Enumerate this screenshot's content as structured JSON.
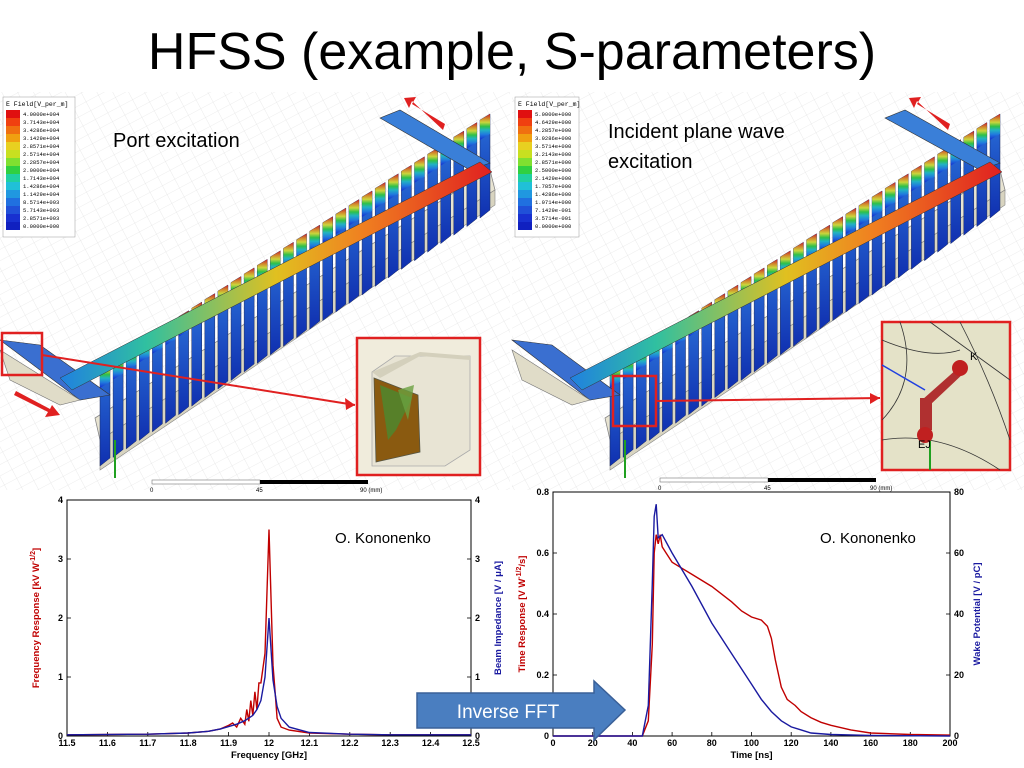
{
  "slide": {
    "title": "HFSS (example, S-parameters)",
    "caption_left": "Port excitation",
    "caption_right_line1": "Incident plane wave",
    "caption_right_line2": "excitation",
    "arrow_label": "Inverse FFT",
    "author_left": "O. Kononenko",
    "author_right": "O. Kononenko",
    "legend_left_title": "E Field[V_per_m]",
    "legend_right_title": "E Field[V_per_m]",
    "legend_left_values": [
      "4.0000e+004",
      "3.7143e+004",
      "3.4286e+004",
      "3.1429e+004",
      "2.8571e+004",
      "2.5714e+004",
      "2.2857e+004",
      "2.0000e+004",
      "1.7143e+004",
      "1.4286e+004",
      "1.1429e+004",
      "8.5714e+003",
      "5.7143e+003",
      "2.8571e+003",
      "0.0000e+000"
    ],
    "legend_right_values": [
      "5.0000e+000",
      "4.6429e+000",
      "4.2857e+000",
      "3.9286e+000",
      "3.5714e+000",
      "3.2143e+000",
      "2.8571e+000",
      "2.5000e+000",
      "2.1429e+000",
      "1.7857e+000",
      "1.4286e+000",
      "1.0714e+000",
      "7.1429e-001",
      "3.5714e-001",
      "0.0000e+000"
    ],
    "scale_left": [
      "0",
      "45",
      "90 (mm)"
    ],
    "scale_right": [
      "0",
      "45",
      "90 (mm)"
    ],
    "inset_labels": [
      "K",
      "EJ"
    ],
    "colors": {
      "red": "#c00000",
      "blue": "#1a1aa0",
      "arrow": "#4a7ec0",
      "frame": "#e02020"
    }
  },
  "chart_data": [
    {
      "type": "line",
      "xlabel": "Frequency [GHz]",
      "ylabel_left": "Frequency Response [kV W",
      "ylabel_left_sup": "-1/2",
      "ylabel_left_end": "]",
      "ylabel_right": "Beam Impedance [V / μA]",
      "xlim": [
        11.5,
        12.5
      ],
      "ylim_left": [
        0,
        4
      ],
      "ylim_right": [
        0,
        4
      ],
      "x_ticks": [
        "11.5",
        "11.6",
        "11.7",
        "11.8",
        "11.9",
        "12",
        "12.1",
        "12.2",
        "12.3",
        "12.4",
        "12.5"
      ],
      "y_ticks_left": [
        "0",
        "1",
        "2",
        "3",
        "4"
      ],
      "y_ticks_right": [
        "0",
        "1",
        "2",
        "3",
        "4"
      ],
      "series": [
        {
          "color": "#c00000",
          "x": [
            11.5,
            11.7,
            11.8,
            11.85,
            11.88,
            11.9,
            11.91,
            11.92,
            11.93,
            11.94,
            11.945,
            11.95,
            11.955,
            11.96,
            11.965,
            11.97,
            11.975,
            11.98,
            11.99,
            12.0,
            12.01,
            12.015,
            12.02,
            12.03,
            12.05,
            12.1,
            12.2,
            12.3,
            12.5
          ],
          "y": [
            0.02,
            0.03,
            0.05,
            0.08,
            0.12,
            0.18,
            0.22,
            0.15,
            0.3,
            0.2,
            0.45,
            0.25,
            0.6,
            0.35,
            0.75,
            0.45,
            0.9,
            0.9,
            1.4,
            3.5,
            1.2,
            0.75,
            0.3,
            0.15,
            0.1,
            0.05,
            0.03,
            0.02,
            0.02
          ]
        },
        {
          "color": "#1a1aa0",
          "x": [
            11.5,
            11.7,
            11.8,
            11.85,
            11.88,
            11.9,
            11.92,
            11.94,
            11.96,
            11.97,
            11.98,
            11.99,
            12.0,
            12.01,
            12.02,
            12.03,
            12.05,
            12.1,
            12.2,
            12.3,
            12.5
          ],
          "y": [
            0.02,
            0.03,
            0.05,
            0.08,
            0.12,
            0.16,
            0.2,
            0.26,
            0.35,
            0.45,
            0.6,
            1.0,
            2.0,
            0.95,
            0.5,
            0.3,
            0.15,
            0.06,
            0.03,
            0.02,
            0.02
          ]
        }
      ]
    },
    {
      "type": "line",
      "xlabel": "Time [ns]",
      "ylabel_left": "Time Response [V W",
      "ylabel_left_sup": "-1/2",
      "ylabel_left_end": "/s]",
      "ylabel_right": "Wake Potential [V / pC]",
      "xlim": [
        0,
        200
      ],
      "ylim_left": [
        0,
        0.8
      ],
      "ylim_right": [
        0,
        80
      ],
      "x_ticks": [
        "0",
        "20",
        "40",
        "60",
        "80",
        "100",
        "120",
        "140",
        "160",
        "180",
        "200"
      ],
      "y_ticks_left": [
        "0",
        "0.2",
        "0.4",
        "0.6",
        "0.8"
      ],
      "y_ticks_right": [
        "0",
        "20",
        "40",
        "60",
        "80"
      ],
      "series": [
        {
          "color": "#c00000",
          "x": [
            0,
            45,
            48,
            50,
            51,
            52,
            53,
            54,
            55,
            57,
            60,
            65,
            70,
            80,
            90,
            95,
            100,
            105,
            108,
            110,
            112,
            115,
            118,
            120,
            122,
            125,
            130,
            135,
            140,
            150,
            160,
            180,
            200
          ],
          "y": [
            0,
            0,
            0.05,
            0.3,
            0.6,
            0.66,
            0.63,
            0.66,
            0.62,
            0.6,
            0.57,
            0.55,
            0.53,
            0.49,
            0.44,
            0.41,
            0.39,
            0.38,
            0.36,
            0.32,
            0.25,
            0.16,
            0.12,
            0.11,
            0.1,
            0.08,
            0.06,
            0.045,
            0.035,
            0.02,
            0.01,
            0.005,
            0.003
          ]
        },
        {
          "color": "#1a1aa0",
          "x": [
            0,
            45,
            48,
            50,
            51,
            52,
            53,
            55,
            60,
            70,
            80,
            90,
            100,
            105,
            110,
            115,
            120,
            125,
            130,
            140,
            160,
            200
          ],
          "y": [
            0,
            0,
            0.1,
            0.5,
            0.72,
            0.76,
            0.65,
            0.66,
            0.6,
            0.49,
            0.37,
            0.27,
            0.17,
            0.12,
            0.08,
            0.05,
            0.03,
            0.02,
            0.01,
            0.005,
            0.002,
            0.0
          ]
        }
      ]
    }
  ]
}
